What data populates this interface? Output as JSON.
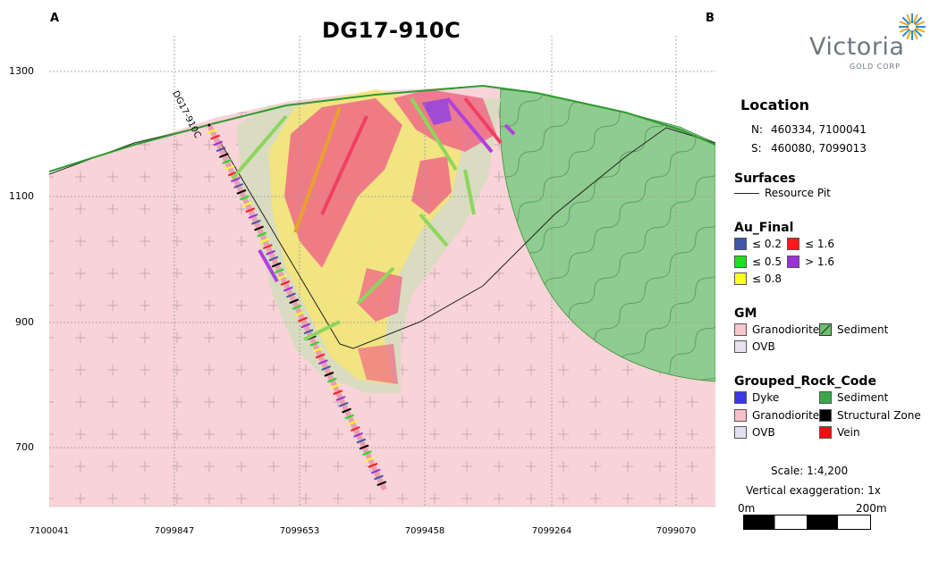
{
  "title": "DG17-910C",
  "corner_labels": {
    "left": "A",
    "right": "B"
  },
  "drillhole_label": "DG17-910C",
  "y_axis": [
    "1300",
    "1100",
    "900",
    "700"
  ],
  "x_axis": [
    "7100041",
    "7099847",
    "7099653",
    "7099458",
    "7099264",
    "7099070"
  ],
  "logo": {
    "name": "Victoria",
    "sub": "GOLD CORP"
  },
  "location": {
    "title": "Location",
    "n_label": "N:",
    "n_value": "460334, 7100041",
    "s_label": "S:",
    "s_value": "460080, 7099013"
  },
  "surfaces": {
    "title": "Surfaces",
    "item": "Resource Pit"
  },
  "au_final": {
    "title": "Au_Final",
    "items": [
      {
        "label": "≤ 0.2",
        "color": "#3f57a8"
      },
      {
        "label": "≤ 1.6",
        "color": "#ff1a1a"
      },
      {
        "label": "≤ 0.5",
        "color": "#22dd22"
      },
      {
        "label": "> 1.6",
        "color": "#9b30d9"
      },
      {
        "label": "≤ 0.8",
        "color": "#ffff22"
      }
    ]
  },
  "gm": {
    "title": "GM",
    "items": [
      {
        "label": "Granodiorite",
        "color": "#f7c6cc"
      },
      {
        "label": "Sediment",
        "color": "#6cbf6c"
      },
      {
        "label": "OVB",
        "color": "#e6e2f2"
      }
    ]
  },
  "rock_code": {
    "title": "Grouped_Rock_Code",
    "items": [
      {
        "label": "Dyke",
        "color": "#3b36e6"
      },
      {
        "label": "Sediment",
        "color": "#3aa84a"
      },
      {
        "label": "Granodiorite",
        "color": "#f7c0c8"
      },
      {
        "label": "Structural Zone",
        "color": "#000000"
      },
      {
        "label": "OVB",
        "color": "#e2e0f0"
      },
      {
        "label": "Vein",
        "color": "#ee1111"
      }
    ]
  },
  "scale": {
    "text": "Scale: 1:4,200",
    "exaggeration": "Vertical exaggeration: 1x",
    "start": "0m",
    "end": "200m"
  },
  "colors": {
    "granodiorite": "#f8d3d8",
    "sediment": "#8fcc8f",
    "topography": "#2e9a2e",
    "grid": "#999999"
  }
}
